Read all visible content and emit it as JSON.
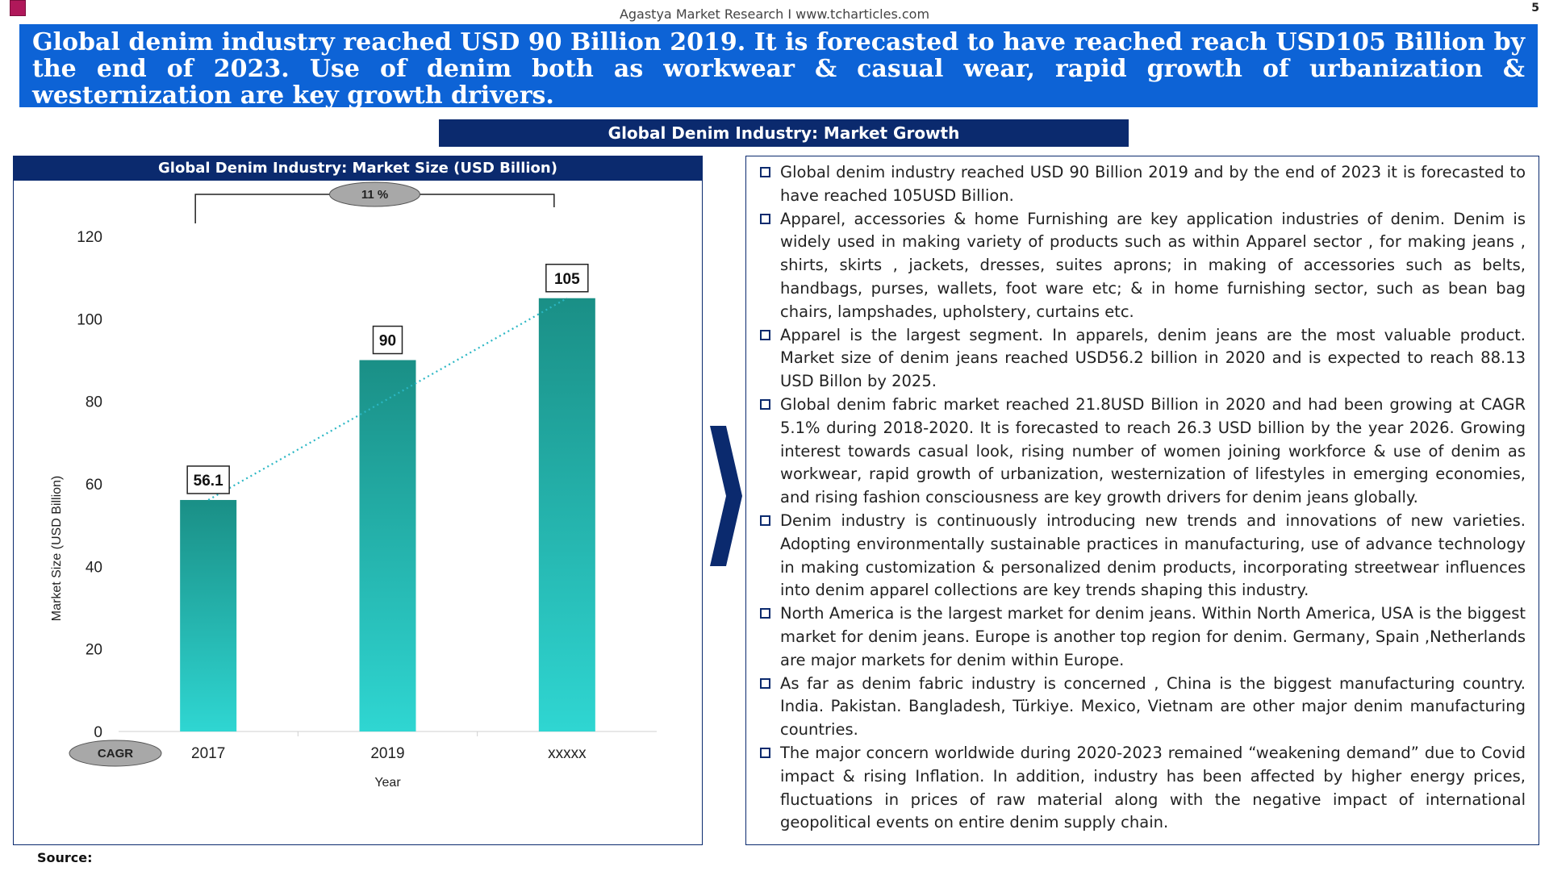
{
  "header": {
    "source_line": "Agastya Market Research I www.tcharticles.com",
    "page_number": "5",
    "headline": "Global denim industry reached USD 90 Billion 2019. It is forecasted to have reached reach USD105 Billion by the end of 2023. Use of denim both as workwear & casual wear, rapid growth of urbanization & westernization are key growth drivers."
  },
  "section_title": "Global Denim Industry:  Market Growth",
  "chart_data": {
    "type": "bar",
    "title": "Global Denim Industry:  Market Size (USD Billion)",
    "categories": [
      "2017",
      "2019",
      "xxxxx"
    ],
    "values": [
      56.1,
      90,
      105
    ],
    "data_labels": [
      "56.1",
      "90",
      "105"
    ],
    "ylabel": "Market Size (USD Billion)",
    "xlabel": "Year",
    "ylim": [
      0,
      120
    ],
    "yticks": [
      "0",
      "20",
      "40",
      "60",
      "80",
      "100",
      "120"
    ],
    "cagr_value": "11 %",
    "cagr_label": "CAGR",
    "bar_color_top": "#1a8f86",
    "bar_color_bottom": "#2fd6d2",
    "trendline_color": "#2bb7c4"
  },
  "bullets": [
    "Global denim industry reached USD 90 Billion 2019 and by the end of 2023 it is forecasted to have reached 105USD Billion.",
    "Apparel, accessories & home  Furnishing   are key application industries of denim. Denim is widely used in making variety of products such as within Apparel sector , for making jeans , shirts, skirts , jackets, dresses, suites aprons;  in  making of accessories such as belts, handbags, purses, wallets, foot ware  etc; & in home furnishing sector, such as bean bag chairs, lampshades, upholstery, curtains etc.",
    "Apparel is the largest segment. In apparels, denim jeans are the most valuable product. Market size of denim jeans reached USD56.2 billion in 2020 and is expected to reach 88.13 USD Billon by 2025.",
    "Global denim fabric market reached 21.8USD Billion in 2020 and had been growing at CAGR 5.1% during 2018-2020. It is forecasted to reach 26.3 USD billion by the year 2026. Growing interest towards casual look, rising number of women joining workforce & use of denim as workwear, rapid growth of urbanization, westernization of lifestyles in emerging economies, and rising fashion consciousness are key growth drivers  for denim jeans globally.",
    "Denim  industry is continuously introducing new trends and innovations of new varieties. Adopting environmentally sustainable practices in manufacturing,  use of advance technology in making customization & personalized denim products,  incorporating streetwear influences into denim apparel collections are key trends shaping this industry.",
    "North America is the largest market for denim jeans. Within North America, USA is the biggest market for denim jeans. Europe is another top region for denim. Germany, Spain ,Netherlands are major markets for denim within Europe.",
    "As far as denim fabric industry is concerned , China is the biggest manufacturing country. India. Pakistan. Bangladesh, Türkiye. Mexico, Vietnam are  other major denim manufacturing countries.",
    "The major concern worldwide during 2020-2023 remained “weakening demand” due to Covid impact  & rising Inflation. In addition, industry has been affected by higher energy prices, fluctuations  in  prices  of  raw  material  along  with  the  negative  impact  of  international geopolitical events on entire denim supply chain."
  ],
  "footer": {
    "source_label": "Source:"
  }
}
